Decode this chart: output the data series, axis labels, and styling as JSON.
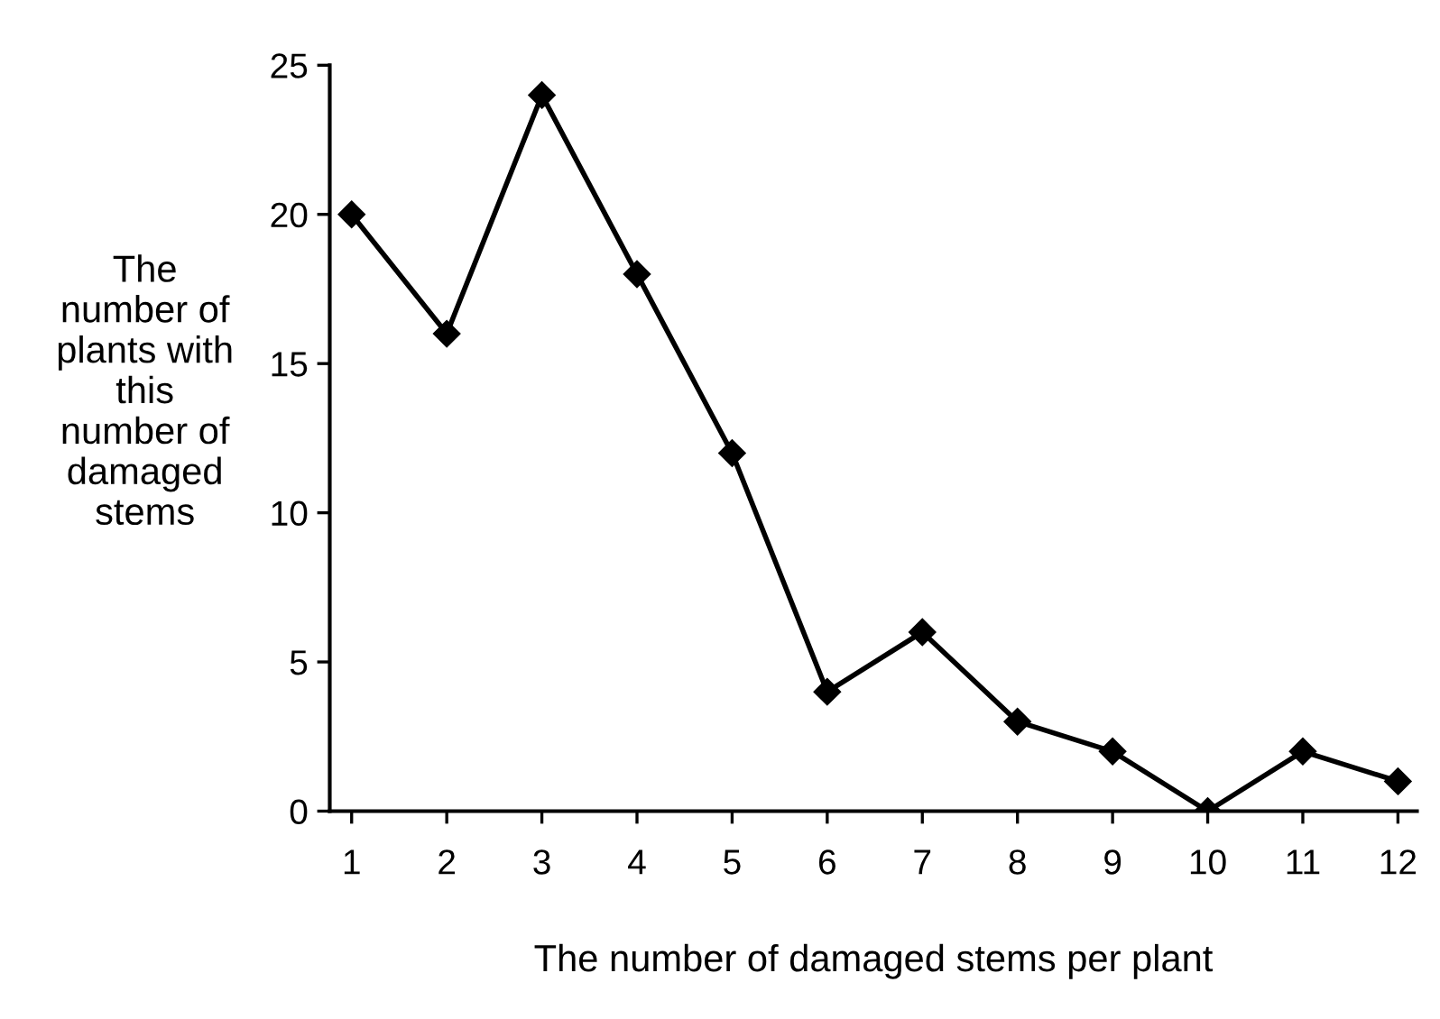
{
  "chart_data": {
    "type": "line",
    "xlabel": "The number of damaged stems per plant",
    "ylabel": "The\nnumber of\nplants with\nthis\nnumber of\ndamaged\nstems",
    "categories": [
      "1",
      "2",
      "3",
      "4",
      "5",
      "6",
      "7",
      "8",
      "9",
      "10",
      "11",
      "12"
    ],
    "series": [
      {
        "color": "#000000",
        "values": [
          20,
          16,
          24,
          18,
          12,
          4,
          6,
          3,
          2,
          0,
          2,
          1
        ]
      }
    ],
    "ylim": [
      0,
      25
    ],
    "yticks": [
      0,
      5,
      10,
      15,
      20,
      25
    ],
    "marker": "diamond",
    "line_style": "solid",
    "grid": false,
    "legend": false
  }
}
